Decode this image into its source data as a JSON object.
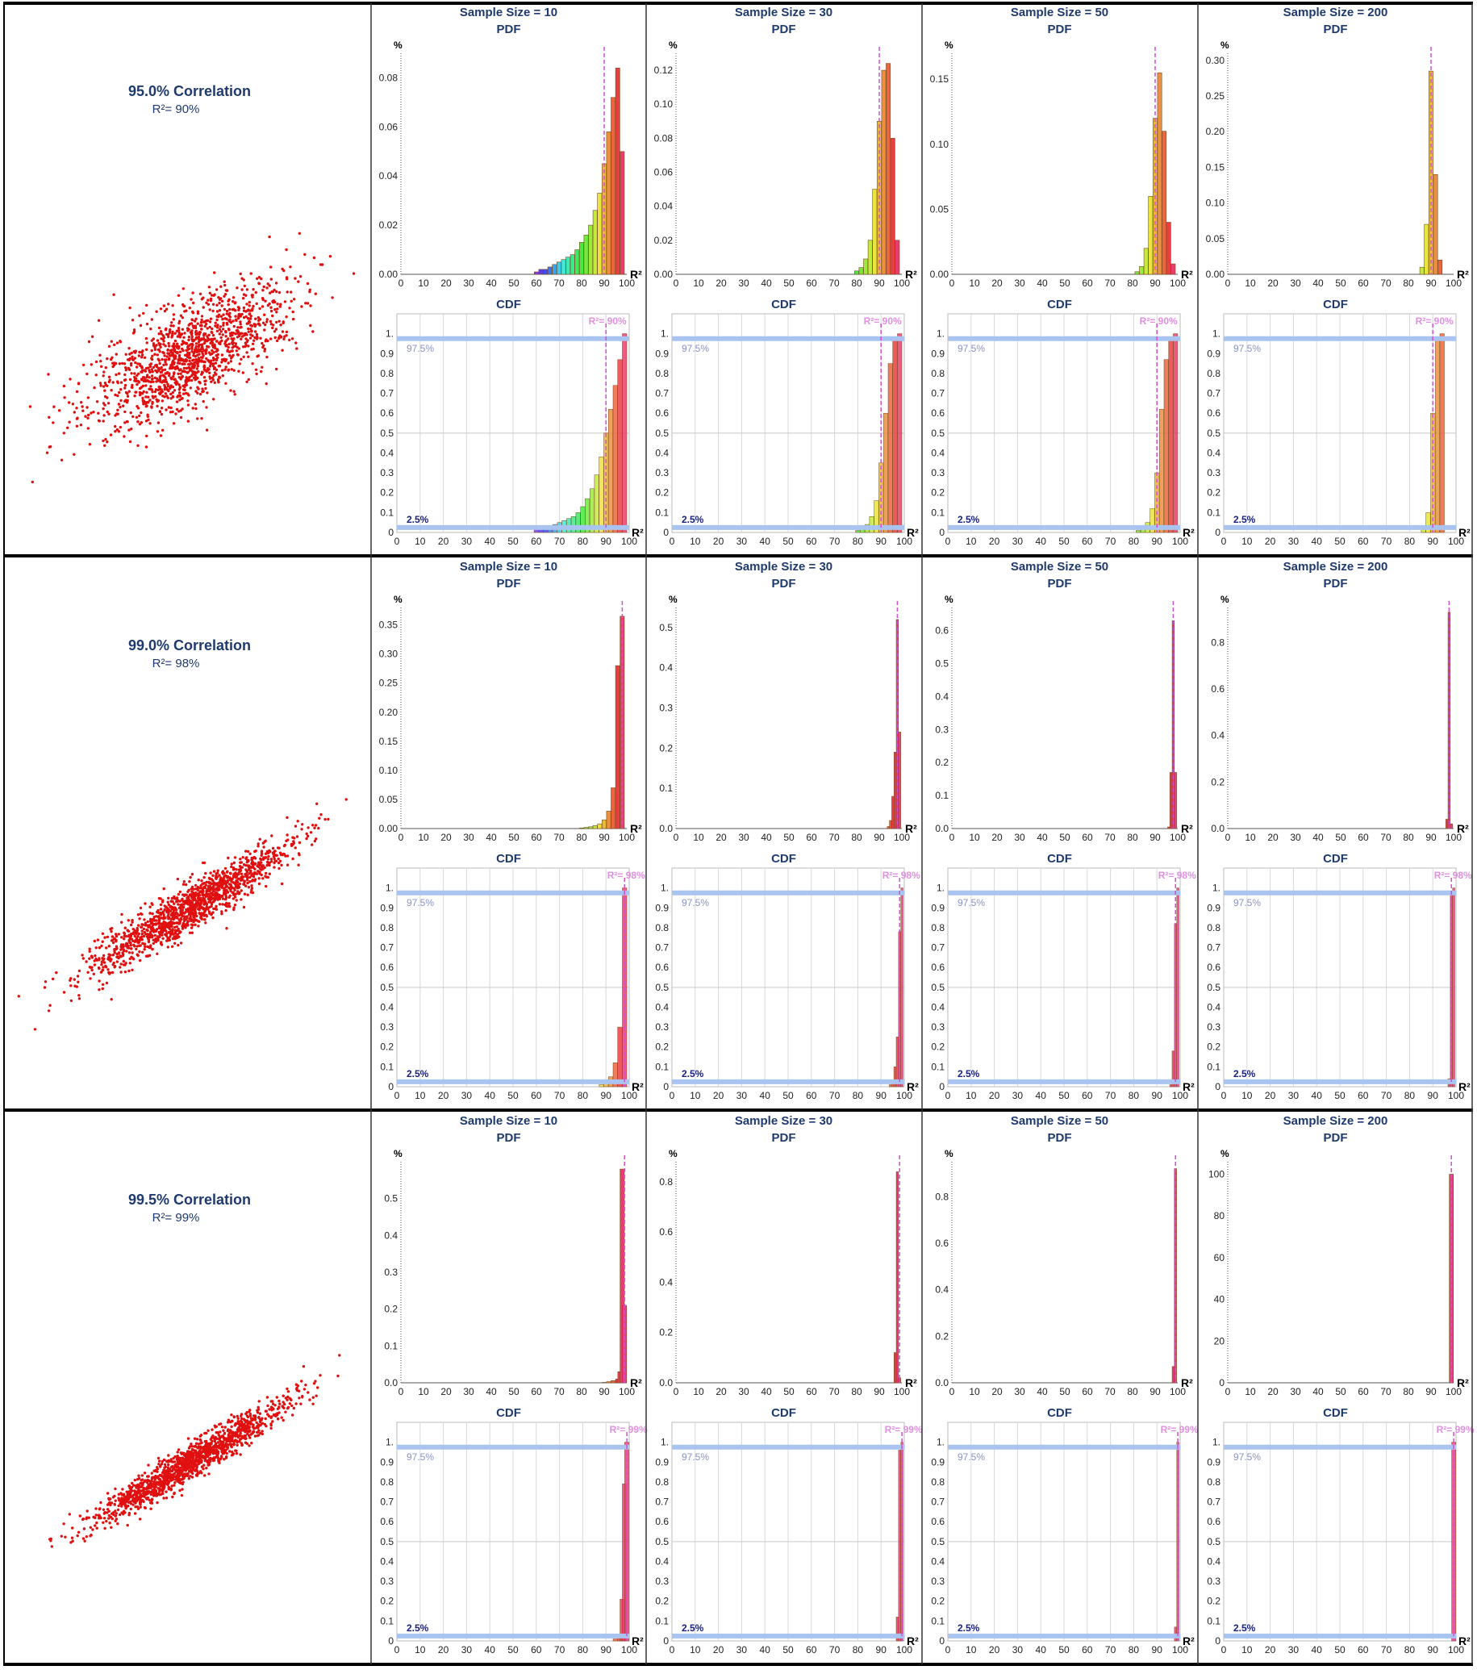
{
  "colors": {
    "border": "#000000",
    "title": "#1f3a6e",
    "scatter": "#e01010",
    "marker": "#d050d0",
    "band": "#a9c4f0"
  },
  "labels": {
    "pdf_title": "PDF",
    "cdf_title": "CDF",
    "pdf_ylabel": "%",
    "xlabel": "R²",
    "band_upper": "97.5%",
    "band_lower": "2.5%"
  },
  "rows": [
    {
      "title": "95.0% Correlation",
      "subtitle": "R²= 90%",
      "marker_label": "R²= 90%",
      "marker_x": 90,
      "correlation": 0.95,
      "panels": [
        {
          "title": "Sample Size = 10",
          "pdf_ymax": 0.09,
          "pdf_ticks": [
            "0.00",
            "0.02",
            "0.04",
            "0.06",
            "0.08"
          ],
          "pdf_tick_values": [
            0,
            0.02,
            0.04,
            0.06,
            0.08
          ]
        },
        {
          "title": "Sample Size = 30",
          "pdf_ymax": 0.13,
          "pdf_ticks": [
            "0.00",
            "0.02",
            "0.04",
            "0.06",
            "0.08",
            "0.10",
            "0.12"
          ],
          "pdf_tick_values": [
            0,
            0.02,
            0.04,
            0.06,
            0.08,
            0.1,
            0.12
          ]
        },
        {
          "title": "Sample Size = 50",
          "pdf_ymax": 0.17,
          "pdf_ticks": [
            "0.00",
            "0.05",
            "0.10",
            "0.15"
          ],
          "pdf_tick_values": [
            0,
            0.05,
            0.1,
            0.15
          ]
        },
        {
          "title": "Sample Size = 200",
          "pdf_ymax": 0.31,
          "pdf_ticks": [
            "0.00",
            "0.05",
            "0.10",
            "0.15",
            "0.20",
            "0.25",
            "0.30"
          ],
          "pdf_tick_values": [
            0,
            0.05,
            0.1,
            0.15,
            0.2,
            0.25,
            0.3
          ]
        }
      ]
    },
    {
      "title": "99.0% Correlation",
      "subtitle": "R²= 98%",
      "marker_label": "R²= 98%",
      "marker_x": 98,
      "correlation": 0.99,
      "panels": [
        {
          "title": "Sample Size = 10",
          "pdf_ymax": 0.38,
          "pdf_ticks": [
            "0.00",
            "0.05",
            "0.10",
            "0.15",
            "0.20",
            "0.25",
            "0.30",
            "0.35"
          ],
          "pdf_tick_values": [
            0,
            0.05,
            0.1,
            0.15,
            0.2,
            0.25,
            0.3,
            0.35
          ]
        },
        {
          "title": "Sample Size = 30",
          "pdf_ymax": 0.55,
          "pdf_ticks": [
            "0.0",
            "0.1",
            "0.2",
            "0.3",
            "0.4",
            "0.5"
          ],
          "pdf_tick_values": [
            0,
            0.1,
            0.2,
            0.3,
            0.4,
            0.5
          ]
        },
        {
          "title": "Sample Size = 50",
          "pdf_ymax": 0.67,
          "pdf_ticks": [
            "0.0",
            "0.1",
            "0.2",
            "0.3",
            "0.4",
            "0.5",
            "0.6"
          ],
          "pdf_tick_values": [
            0,
            0.1,
            0.2,
            0.3,
            0.4,
            0.5,
            0.6
          ]
        },
        {
          "title": "Sample Size = 200",
          "pdf_ymax": 0.95,
          "pdf_ticks": [
            "0.0",
            "0.2",
            "0.4",
            "0.6",
            "0.8"
          ],
          "pdf_tick_values": [
            0,
            0.2,
            0.4,
            0.6,
            0.8
          ]
        }
      ]
    },
    {
      "title": "99.5% Correlation",
      "subtitle": "R²= 99%",
      "marker_label": "R²= 99%",
      "marker_x": 99,
      "correlation": 0.995,
      "panels": [
        {
          "title": "Sample Size = 10",
          "pdf_ymax": 0.6,
          "pdf_ticks": [
            "0.0",
            "0.1",
            "0.2",
            "0.3",
            "0.4",
            "0.5"
          ],
          "pdf_tick_values": [
            0,
            0.1,
            0.2,
            0.3,
            0.4,
            0.5
          ]
        },
        {
          "title": "Sample Size = 30",
          "pdf_ymax": 0.88,
          "pdf_ticks": [
            "0.0",
            "0.2",
            "0.4",
            "0.6",
            "0.8"
          ],
          "pdf_tick_values": [
            0,
            0.2,
            0.4,
            0.6,
            0.8
          ]
        },
        {
          "title": "Sample Size = 50",
          "pdf_ymax": 0.95,
          "pdf_ticks": [
            "0.0",
            "0.2",
            "0.4",
            "0.6",
            "0.8"
          ],
          "pdf_tick_values": [
            0,
            0.2,
            0.4,
            0.6,
            0.8
          ]
        },
        {
          "title": "Sample Size = 200",
          "pdf_ymax": 106,
          "pdf_ticks": [
            "0",
            "20",
            "40",
            "60",
            "80",
            "100"
          ],
          "pdf_tick_values": [
            0,
            20,
            40,
            60,
            80,
            100
          ]
        }
      ]
    }
  ],
  "chart_data": {
    "type": "bar",
    "x_ticks": [
      "0",
      "10",
      "20",
      "30",
      "40",
      "50",
      "60",
      "70",
      "80",
      "90",
      "100"
    ],
    "x_tick_values": [
      0,
      10,
      20,
      30,
      40,
      50,
      60,
      70,
      80,
      90,
      100
    ],
    "xlim": [
      0,
      100
    ],
    "cdf_ticks": [
      "0",
      "0.1",
      "0.2",
      "0.3",
      "0.4",
      "0.5",
      "0.6",
      "0.7",
      "0.8",
      "0.9",
      "1."
    ],
    "cdf_tick_values": [
      0,
      0.1,
      0.2,
      0.3,
      0.4,
      0.5,
      0.6,
      0.7,
      0.8,
      0.9,
      1.0
    ],
    "cdf_ylim": [
      0,
      1.1
    ],
    "band_values": [
      0.025,
      0.975
    ],
    "pdf_series": [
      [
        {
          "x": [
            60,
            62,
            64,
            66,
            68,
            70,
            72,
            74,
            76,
            78,
            80,
            82,
            84,
            86,
            88,
            90,
            92,
            94,
            96,
            98
          ],
          "values": [
            0.001,
            0.002,
            0.002,
            0.003,
            0.004,
            0.005,
            0.006,
            0.007,
            0.008,
            0.01,
            0.013,
            0.016,
            0.02,
            0.026,
            0.033,
            0.045,
            0.058,
            0.072,
            0.084,
            0.05
          ]
        },
        {
          "x": [
            80,
            82,
            84,
            86,
            88,
            90,
            92,
            94,
            96,
            98
          ],
          "values": [
            0.002,
            0.004,
            0.009,
            0.02,
            0.05,
            0.09,
            0.12,
            0.124,
            0.08,
            0.02
          ]
        },
        {
          "x": [
            82,
            84,
            86,
            88,
            90,
            92,
            94,
            96,
            98
          ],
          "values": [
            0.002,
            0.006,
            0.02,
            0.06,
            0.12,
            0.155,
            0.11,
            0.04,
            0.008
          ]
        },
        {
          "x": [
            86,
            88,
            90,
            92,
            94
          ],
          "values": [
            0.01,
            0.07,
            0.285,
            0.14,
            0.02
          ]
        }
      ],
      [
        {
          "x": [
            80,
            82,
            84,
            86,
            88,
            90,
            92,
            94,
            96,
            98
          ],
          "values": [
            0.001,
            0.002,
            0.003,
            0.005,
            0.008,
            0.015,
            0.03,
            0.07,
            0.28,
            0.365
          ]
        },
        {
          "x": [
            94,
            95,
            96,
            97,
            98,
            99
          ],
          "values": [
            0.005,
            0.02,
            0.08,
            0.19,
            0.52,
            0.24
          ]
        },
        {
          "x": [
            96,
            97,
            98,
            99
          ],
          "values": [
            0.005,
            0.17,
            0.63,
            0.17
          ]
        },
        {
          "x": [
            97,
            98,
            99
          ],
          "values": [
            0.04,
            0.93,
            0.02
          ]
        }
      ],
      [
        {
          "x": [
            90,
            92,
            94,
            96,
            97,
            98,
            99
          ],
          "values": [
            0.001,
            0.003,
            0.006,
            0.01,
            0.03,
            0.58,
            0.21
          ]
        },
        {
          "x": [
            97,
            98,
            99
          ],
          "values": [
            0.12,
            0.84,
            0.02
          ]
        },
        {
          "x": [
            98,
            99
          ],
          "values": [
            0.07,
            0.92
          ]
        },
        {
          "x": [
            99
          ],
          "values": [
            100
          ]
        }
      ]
    ],
    "cdf_series": [
      [
        {
          "x": [
            60,
            62,
            64,
            66,
            68,
            70,
            72,
            74,
            76,
            78,
            80,
            82,
            84,
            86,
            88,
            90,
            92,
            94,
            96,
            98
          ],
          "values": [
            0.02,
            0.025,
            0.03,
            0.035,
            0.04,
            0.05,
            0.06,
            0.07,
            0.08,
            0.1,
            0.13,
            0.17,
            0.22,
            0.29,
            0.38,
            0.5,
            0.62,
            0.74,
            0.87,
            1.0
          ]
        },
        {
          "x": [
            80,
            82,
            84,
            86,
            88,
            90,
            92,
            94,
            96,
            98
          ],
          "values": [
            0.01,
            0.02,
            0.04,
            0.08,
            0.16,
            0.35,
            0.6,
            0.85,
            0.97,
            1.0
          ]
        },
        {
          "x": [
            82,
            84,
            86,
            88,
            90,
            92,
            94,
            96,
            98
          ],
          "values": [
            0.01,
            0.02,
            0.05,
            0.12,
            0.3,
            0.62,
            0.87,
            0.97,
            1.0
          ]
        },
        {
          "x": [
            86,
            88,
            90,
            92,
            94
          ],
          "values": [
            0.02,
            0.1,
            0.6,
            0.97,
            1.0
          ]
        }
      ],
      [
        {
          "x": [
            88,
            90,
            92,
            94,
            96,
            98
          ],
          "values": [
            0.01,
            0.02,
            0.05,
            0.12,
            0.3,
            1.0
          ]
        },
        {
          "x": [
            94,
            95,
            96,
            97,
            98,
            99
          ],
          "values": [
            0.01,
            0.03,
            0.1,
            0.25,
            0.78,
            1.0
          ]
        },
        {
          "x": [
            96,
            97,
            98,
            99
          ],
          "values": [
            0.01,
            0.18,
            0.82,
            1.0
          ]
        },
        {
          "x": [
            97,
            98,
            99
          ],
          "values": [
            0.04,
            0.97,
            1.0
          ]
        }
      ],
      [
        {
          "x": [
            94,
            96,
            97,
            98,
            99
          ],
          "values": [
            0.01,
            0.03,
            0.21,
            0.79,
            1.0
          ]
        },
        {
          "x": [
            97,
            98,
            99
          ],
          "values": [
            0.12,
            0.96,
            1.0
          ]
        },
        {
          "x": [
            98,
            99
          ],
          "values": [
            0.07,
            1.0
          ]
        },
        {
          "x": [
            99
          ],
          "values": [
            1.0
          ]
        }
      ]
    ]
  }
}
